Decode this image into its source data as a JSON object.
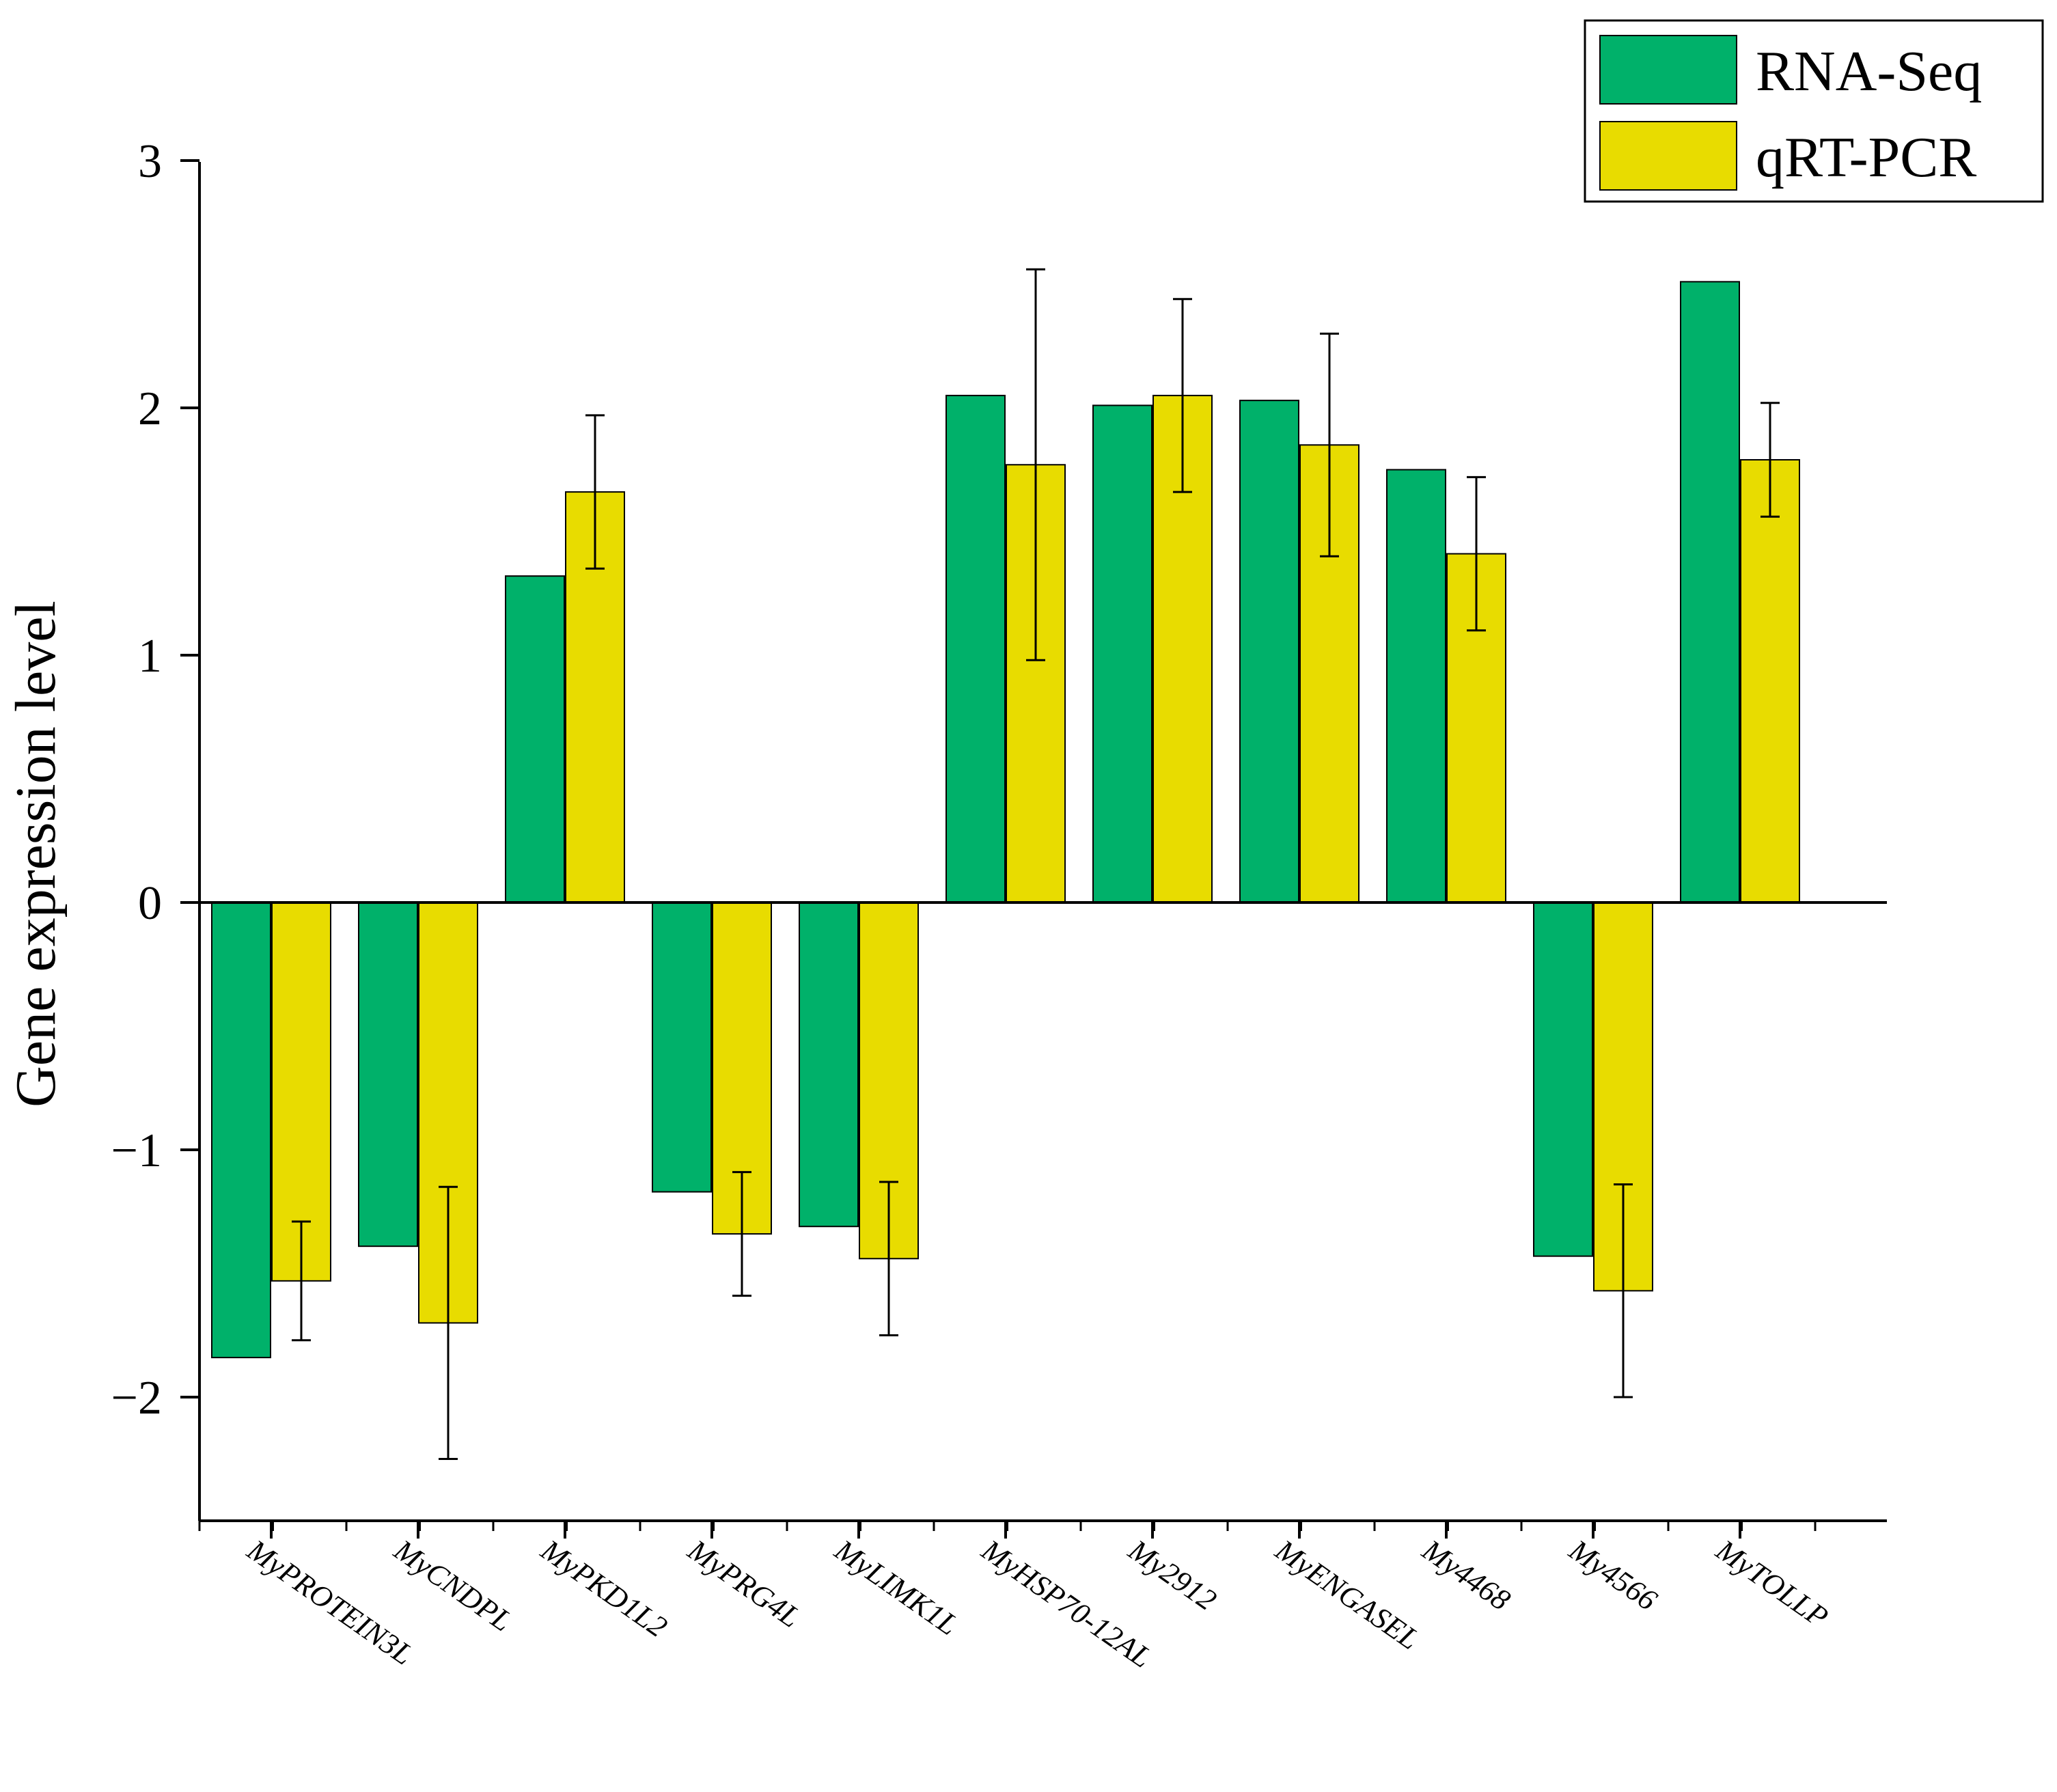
{
  "chart_data": {
    "type": "bar",
    "title": "",
    "xlabel": "",
    "ylabel": "Gene expression level",
    "ylim": [
      -2.5,
      3
    ],
    "yticks": [
      "3",
      "2",
      "1",
      "0",
      "−1",
      "−2"
    ],
    "ytick_values": [
      3,
      2,
      1,
      0,
      -1,
      -2
    ],
    "categories": [
      "MyPROTEIN3L",
      "MyCNDPL",
      "MyPKD1L2",
      "MyPRG4L",
      "MyLIMK1L",
      "MyHSP70-12AL",
      "My2912",
      "MyENGASEL",
      "My4468",
      "My4566",
      "MyTOLLP"
    ],
    "series": [
      {
        "name": "RNA-Seq",
        "color": "#00B16A",
        "values": [
          -1.84,
          -1.39,
          1.32,
          -1.17,
          -1.31,
          2.05,
          2.01,
          2.03,
          1.75,
          -1.43,
          2.51
        ]
      },
      {
        "name": "qRT-PCR",
        "color": "#E8DC00",
        "values": [
          -1.53,
          -1.7,
          1.66,
          -1.34,
          -1.44,
          1.77,
          2.05,
          1.85,
          1.41,
          -1.57,
          1.79
        ],
        "error": [
          0.24,
          0.55,
          0.31,
          0.25,
          0.31,
          0.79,
          0.39,
          0.45,
          0.31,
          0.43,
          0.23
        ]
      }
    ],
    "legend": {
      "position": "top-right",
      "entries": [
        "RNA-Seq",
        "qRT-PCR"
      ]
    },
    "grid": false
  }
}
